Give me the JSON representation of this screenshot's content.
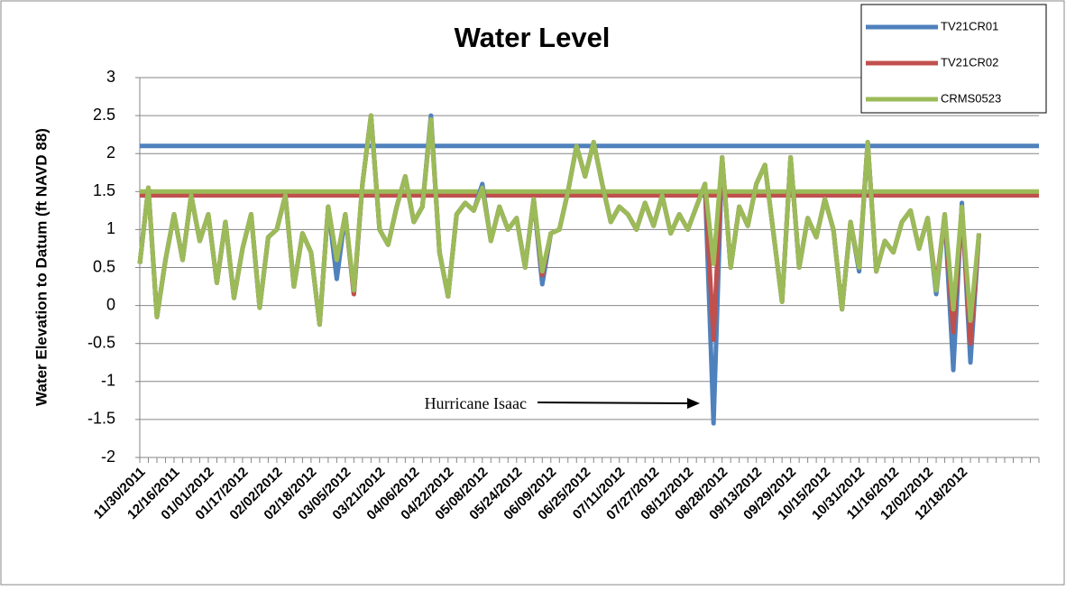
{
  "chart_data": {
    "type": "line",
    "title": "Water Level",
    "y_label": "Water Elevation to Datum (ft NAVD 88)",
    "annotation": "Hurricane Isaac",
    "ylim": [
      -2,
      3
    ],
    "yticks": [
      -2,
      -1.5,
      -1,
      -0.5,
      0,
      0.5,
      1,
      1.5,
      2,
      2.5,
      3
    ],
    "grid": true,
    "legend": "top-right",
    "reference_lines": [
      {
        "value": 2.1,
        "color": "#4f81bd"
      },
      {
        "value": 1.45,
        "color": "#c0504d"
      },
      {
        "value": 1.5,
        "color": "#9bbb59"
      }
    ],
    "categories": [
      "11/30/2011",
      null,
      null,
      null,
      "12/16/2011",
      null,
      null,
      null,
      "01/01/2012",
      null,
      null,
      null,
      "01/17/2012",
      null,
      null,
      null,
      "02/02/2012",
      null,
      null,
      null,
      "02/18/2012",
      null,
      null,
      null,
      "03/05/2012",
      null,
      null,
      null,
      "03/21/2012",
      null,
      null,
      null,
      "04/06/2012",
      null,
      null,
      null,
      "04/22/2012",
      null,
      null,
      null,
      "05/08/2012",
      null,
      null,
      null,
      "05/24/2012",
      null,
      null,
      null,
      "06/09/2012",
      null,
      null,
      null,
      "06/25/2012",
      null,
      null,
      null,
      "07/11/2012",
      null,
      null,
      null,
      "07/27/2012",
      null,
      null,
      null,
      "08/12/2012",
      null,
      null,
      null,
      "08/28/2012",
      null,
      null,
      null,
      "09/13/2012",
      null,
      null,
      null,
      "09/29/2012",
      null,
      null,
      null,
      "10/15/2012",
      null,
      null,
      null,
      "10/31/2012",
      null,
      null,
      null,
      "11/16/2012",
      null,
      null,
      null,
      "12/02/2012",
      null,
      null,
      null,
      "12/18/2012",
      null,
      null,
      null,
      null,
      null,
      null,
      null,
      null,
      null
    ],
    "series": [
      {
        "name": "TV21CR01",
        "color": "#4f81bd",
        "values": [
          0.55,
          1.55,
          -0.15,
          0.6,
          1.2,
          0.6,
          1.45,
          0.85,
          1.2,
          0.3,
          1.1,
          0.1,
          0.75,
          1.2,
          -0.03,
          0.9,
          1.0,
          1.45,
          0.25,
          0.95,
          0.7,
          -0.25,
          1.3,
          0.35,
          1.2,
          0.15,
          1.6,
          2.5,
          1.0,
          0.8,
          1.3,
          1.7,
          1.1,
          1.3,
          2.5,
          0.7,
          0.12,
          1.2,
          1.35,
          1.25,
          1.6,
          0.85,
          1.3,
          1.0,
          1.15,
          0.5,
          1.4,
          0.28,
          0.95,
          1.0,
          1.5,
          2.1,
          1.7,
          2.15,
          1.6,
          1.1,
          1.3,
          1.2,
          1.0,
          1.35,
          1.05,
          1.45,
          0.95,
          1.2,
          1.0,
          1.3,
          1.6,
          -1.55,
          1.95,
          0.5,
          1.3,
          1.05,
          1.6,
          1.85,
          0.95,
          0.05,
          1.95,
          0.5,
          1.15,
          0.9,
          1.4,
          1.0,
          -0.05,
          1.1,
          0.45,
          2.15,
          0.45,
          0.85,
          0.7,
          1.1,
          1.25,
          0.75,
          1.15,
          0.15,
          1.2,
          -0.85,
          1.35,
          -0.75,
          0.95,
          null,
          null,
          null,
          null,
          null,
          null,
          null
        ]
      },
      {
        "name": "TV21CR02",
        "color": "#c0504d",
        "values": [
          0.55,
          1.55,
          -0.15,
          0.6,
          1.2,
          0.6,
          1.45,
          0.85,
          1.2,
          0.3,
          1.1,
          0.1,
          0.75,
          1.2,
          -0.03,
          0.9,
          1.0,
          1.45,
          0.25,
          0.95,
          0.7,
          -0.25,
          1.3,
          0.6,
          1.2,
          0.15,
          1.6,
          2.5,
          1.0,
          0.8,
          1.3,
          1.7,
          1.1,
          1.3,
          2.45,
          0.7,
          0.12,
          1.2,
          1.35,
          1.25,
          1.55,
          0.85,
          1.3,
          1.0,
          1.15,
          0.5,
          1.4,
          0.4,
          0.95,
          1.0,
          1.5,
          2.1,
          1.7,
          2.15,
          1.6,
          1.1,
          1.3,
          1.2,
          1.0,
          1.35,
          1.05,
          1.45,
          0.95,
          1.2,
          1.0,
          1.3,
          1.6,
          -0.45,
          1.95,
          0.5,
          1.3,
          1.05,
          1.6,
          1.85,
          0.95,
          0.05,
          1.95,
          0.5,
          1.15,
          0.9,
          1.4,
          1.0,
          -0.05,
          1.1,
          0.5,
          2.15,
          0.45,
          0.85,
          0.7,
          1.1,
          1.25,
          0.75,
          1.15,
          0.25,
          1.2,
          -0.35,
          1.3,
          -0.5,
          0.95,
          null,
          null,
          null,
          null,
          null,
          null,
          null
        ]
      },
      {
        "name": "CRMS0523",
        "color": "#9bbb59",
        "values": [
          0.55,
          1.55,
          -0.15,
          0.6,
          1.2,
          0.6,
          1.45,
          0.85,
          1.2,
          0.3,
          1.1,
          0.1,
          0.75,
          1.2,
          -0.03,
          0.9,
          1.0,
          1.45,
          0.25,
          0.95,
          0.7,
          -0.25,
          1.3,
          0.6,
          1.2,
          0.2,
          1.6,
          2.5,
          1.0,
          0.8,
          1.3,
          1.7,
          1.1,
          1.3,
          2.45,
          0.7,
          0.12,
          1.2,
          1.35,
          1.25,
          1.55,
          0.85,
          1.3,
          1.0,
          1.15,
          0.5,
          1.4,
          0.45,
          0.95,
          1.0,
          1.5,
          2.1,
          1.7,
          2.15,
          1.6,
          1.1,
          1.3,
          1.2,
          1.0,
          1.35,
          1.05,
          1.45,
          0.95,
          1.2,
          1.0,
          1.3,
          1.6,
          0.55,
          1.95,
          0.5,
          1.3,
          1.05,
          1.6,
          1.85,
          0.95,
          0.05,
          1.95,
          0.5,
          1.15,
          0.9,
          1.4,
          1.0,
          -0.05,
          1.1,
          0.5,
          2.15,
          0.45,
          0.85,
          0.7,
          1.1,
          1.25,
          0.75,
          1.15,
          0.2,
          1.2,
          -0.05,
          1.3,
          -0.2,
          0.95,
          null,
          null,
          null,
          null,
          null,
          null,
          null
        ]
      }
    ]
  }
}
